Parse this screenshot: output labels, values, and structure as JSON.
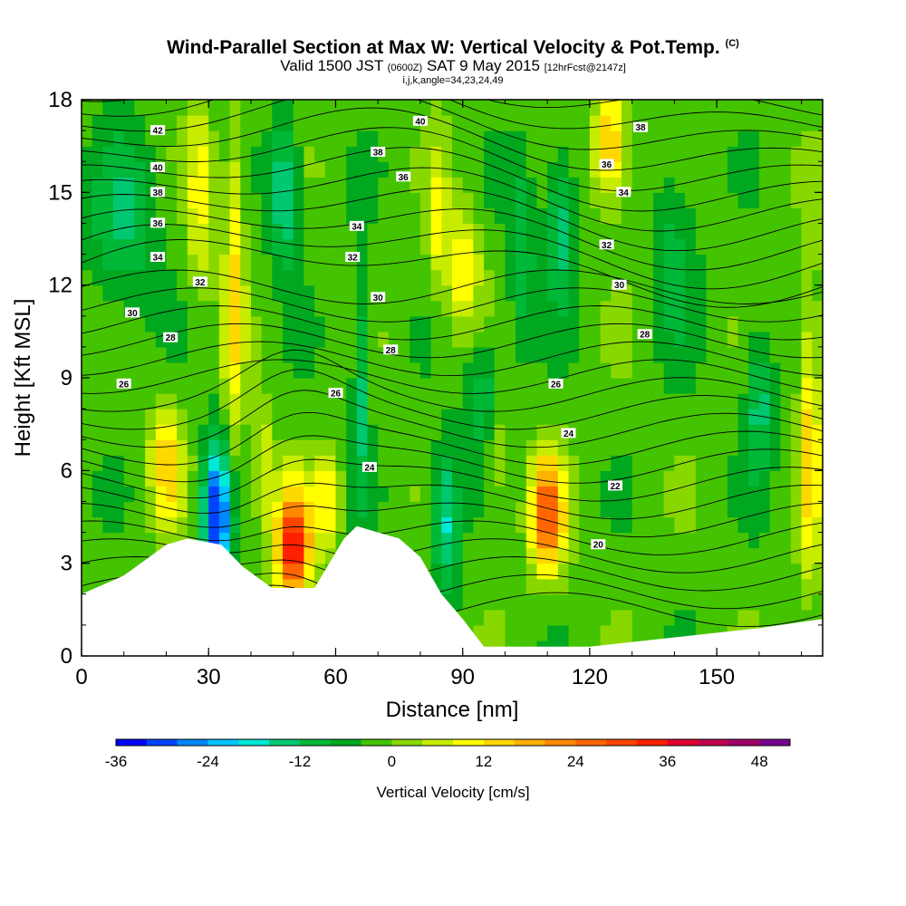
{
  "header": {
    "title": "Wind-Parallel Section at Max W: Vertical Velocity & Pot.Temp.",
    "copyright": "(C)",
    "valid_prefix": "Valid 1500 JST",
    "valid_utc": "(0600Z)",
    "valid_date": "SAT 9 May 2015",
    "forecast": "[12hrFcst@2147z]",
    "params": "i,j,k,angle=34,23,24,49"
  },
  "chart_data": {
    "type": "heatmap",
    "xlabel": "Distance [nm]",
    "ylabel": "Height [Kft MSL]",
    "xlim": [
      0,
      175
    ],
    "ylim": [
      0,
      18
    ],
    "x_ticks": [
      "0",
      "30",
      "60",
      "90",
      "120",
      "150"
    ],
    "y_ticks": [
      "0",
      "3",
      "6",
      "9",
      "12",
      "15",
      "18"
    ],
    "colorbar": {
      "title": "Vertical Velocity [cm/s]",
      "min": -36,
      "max": 52,
      "step": 4,
      "tick_labels": [
        "-36",
        "-24",
        "-12",
        "0",
        "12",
        "24",
        "36",
        "48"
      ],
      "colors": [
        "#0000ff",
        "#0044ff",
        "#0088ff",
        "#00c4ff",
        "#00e8d8",
        "#00c870",
        "#00b838",
        "#00a820",
        "#44c400",
        "#88d800",
        "#c8ec00",
        "#ffff00",
        "#ffd800",
        "#ffb000",
        "#ff8800",
        "#ff6600",
        "#ff4400",
        "#ff2000",
        "#e00030",
        "#c00050",
        "#a00068",
        "#780090"
      ]
    },
    "topography_kft": [
      [
        0,
        2.0
      ],
      [
        10,
        2.6
      ],
      [
        20,
        3.6
      ],
      [
        25,
        3.8
      ],
      [
        33,
        3.6
      ],
      [
        38,
        2.9
      ],
      [
        45,
        2.2
      ],
      [
        55,
        2.2
      ],
      [
        62,
        3.8
      ],
      [
        65,
        4.2
      ],
      [
        70,
        4.0
      ],
      [
        75,
        3.8
      ],
      [
        80,
        3.2
      ],
      [
        85,
        2.0
      ],
      [
        90,
        1.2
      ],
      [
        95,
        0.3
      ],
      [
        120,
        0.3
      ],
      [
        140,
        0.6
      ],
      [
        160,
        0.9
      ],
      [
        175,
        1.2
      ]
    ],
    "updraft_maxima": [
      {
        "x": 50,
        "y": 3.5,
        "value": 38
      },
      {
        "x": 110,
        "y": 4.6,
        "value": 30
      },
      {
        "x": 20,
        "y": 6.2,
        "value": 16
      },
      {
        "x": 90,
        "y": 12.5,
        "value": 14
      },
      {
        "x": 125,
        "y": 16.5,
        "value": 20
      }
    ],
    "downdraft_minima": [
      {
        "x": 32,
        "y": 4.5,
        "value": -30
      },
      {
        "x": 48,
        "y": 15.0,
        "value": -16
      },
      {
        "x": 86,
        "y": 4.5,
        "value": -16
      },
      {
        "x": 113,
        "y": 14.0,
        "value": -14
      },
      {
        "x": 160,
        "y": 8.2,
        "value": -12
      }
    ],
    "theta_contour_labels": [
      {
        "text": "42",
        "x": 18,
        "y": 17.0
      },
      {
        "text": "40",
        "x": 18,
        "y": 15.8
      },
      {
        "text": "38",
        "x": 18,
        "y": 15.0
      },
      {
        "text": "36",
        "x": 18,
        "y": 14.0
      },
      {
        "text": "34",
        "x": 18,
        "y": 12.9
      },
      {
        "text": "32",
        "x": 28,
        "y": 12.1
      },
      {
        "text": "30",
        "x": 12,
        "y": 11.1
      },
      {
        "text": "28",
        "x": 21,
        "y": 10.3
      },
      {
        "text": "26",
        "x": 10,
        "y": 8.8
      },
      {
        "text": "40",
        "x": 80,
        "y": 17.3
      },
      {
        "text": "38",
        "x": 70,
        "y": 16.3
      },
      {
        "text": "36",
        "x": 76,
        "y": 15.5
      },
      {
        "text": "34",
        "x": 65,
        "y": 13.9
      },
      {
        "text": "32",
        "x": 64,
        "y": 12.9
      },
      {
        "text": "30",
        "x": 70,
        "y": 11.6
      },
      {
        "text": "28",
        "x": 73,
        "y": 9.9
      },
      {
        "text": "26",
        "x": 60,
        "y": 8.5
      },
      {
        "text": "24",
        "x": 68,
        "y": 6.1
      },
      {
        "text": "38",
        "x": 132,
        "y": 17.1
      },
      {
        "text": "36",
        "x": 124,
        "y": 15.9
      },
      {
        "text": "34",
        "x": 128,
        "y": 15.0
      },
      {
        "text": "32",
        "x": 124,
        "y": 13.3
      },
      {
        "text": "30",
        "x": 127,
        "y": 12.0
      },
      {
        "text": "28",
        "x": 133,
        "y": 10.4
      },
      {
        "text": "26",
        "x": 112,
        "y": 8.8
      },
      {
        "text": "24",
        "x": 115,
        "y": 7.2
      },
      {
        "text": "22",
        "x": 126,
        "y": 5.5
      },
      {
        "text": "20",
        "x": 122,
        "y": 3.6
      }
    ]
  }
}
